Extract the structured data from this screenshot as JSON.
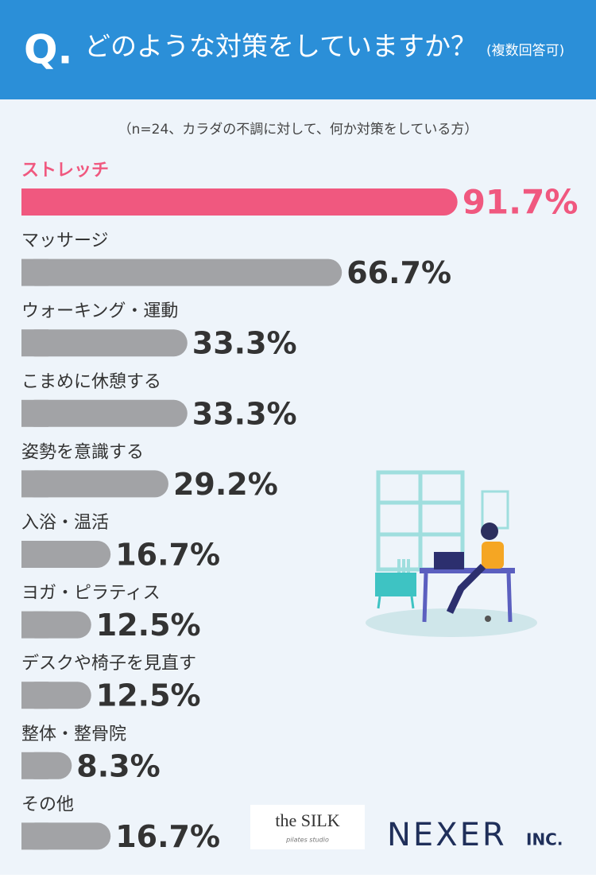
{
  "chart_data": {
    "type": "bar",
    "title_prefix": "Q.",
    "title": "どのような対策をしていますか？",
    "title_note": "(複数回答可)",
    "subtitle": "（n=24、カラダの不調に対して、何か対策をしている方）",
    "categories": [
      "ストレッチ",
      "マッサージ",
      "ウォーキング・運動",
      "こまめに休憩する",
      "姿勢を意識する",
      "入浴・温活",
      "ヨガ・ピラティス",
      "デスクや椅子を見直す",
      "整体・整骨院",
      "その他"
    ],
    "values": [
      91.7,
      66.7,
      33.3,
      33.3,
      29.2,
      16.7,
      12.5,
      12.5,
      8.3,
      16.7
    ],
    "value_labels": [
      "91.7%",
      "66.7%",
      "33.3%",
      "33.3%",
      "29.2%",
      "16.7%",
      "12.5%",
      "12.5%",
      "8.3%",
      "16.7%"
    ],
    "colors": [
      "#f0587f",
      "#a2a3a6",
      "#a2a3a6",
      "#a2a3a6",
      "#a2a3a6",
      "#a2a3a6",
      "#a2a3a6",
      "#a2a3a6",
      "#a2a3a6",
      "#a2a3a6"
    ],
    "logos": {
      "silk": "the SILK",
      "silk_sub": "pilates studio",
      "nexer": "NEXER",
      "nexer_suffix": "INC."
    }
  }
}
